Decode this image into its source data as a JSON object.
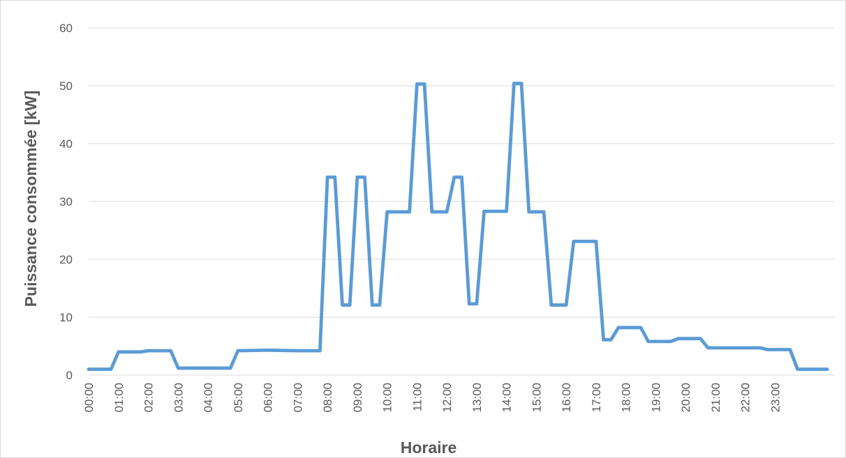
{
  "chart_data": {
    "type": "line",
    "title": "",
    "xlabel": "Horaire",
    "ylabel": "Puissance consommée [kW]",
    "ylim": [
      0,
      60
    ],
    "y_ticks": [
      0,
      10,
      20,
      30,
      40,
      50,
      60
    ],
    "y_tick_labels": [
      "0",
      "10",
      "20",
      "30",
      "40",
      "50",
      "60"
    ],
    "x_tick_labels": [
      "00:00",
      "01:00",
      "02:00",
      "03:00",
      "04:00",
      "05:00",
      "06:00",
      "07:00",
      "08:00",
      "09:00",
      "10:00",
      "11:00",
      "12:00",
      "13:00",
      "14:00",
      "15:00",
      "16:00",
      "17:00",
      "18:00",
      "19:00",
      "20:00",
      "21:00",
      "22:00",
      "23:00"
    ],
    "x_units": "quarter-hour",
    "grid": "horizontal",
    "legend": "none",
    "series": [
      {
        "color": "#5b9bd5",
        "points": [
          [
            0,
            1
          ],
          [
            0.75,
            1
          ],
          [
            1,
            4
          ],
          [
            1.75,
            4
          ],
          [
            2,
            4.2
          ],
          [
            2.75,
            4.2
          ],
          [
            3,
            1.2
          ],
          [
            4.75,
            1.2
          ],
          [
            5,
            4.2
          ],
          [
            6,
            4.3
          ],
          [
            7,
            4.2
          ],
          [
            7.75,
            4.2
          ],
          [
            8,
            34.2
          ],
          [
            8.25,
            34.2
          ],
          [
            8.5,
            12.1
          ],
          [
            8.75,
            12.1
          ],
          [
            9,
            34.2
          ],
          [
            9.25,
            34.2
          ],
          [
            9.5,
            12.1
          ],
          [
            9.75,
            12.1
          ],
          [
            10,
            28.2
          ],
          [
            10.75,
            28.2
          ],
          [
            11,
            50.3
          ],
          [
            11.25,
            50.3
          ],
          [
            11.5,
            28.2
          ],
          [
            12,
            28.2
          ],
          [
            12.25,
            34.2
          ],
          [
            12.5,
            34.2
          ],
          [
            12.75,
            12.3
          ],
          [
            13,
            12.3
          ],
          [
            13.25,
            28.3
          ],
          [
            14,
            28.3
          ],
          [
            14.25,
            50.4
          ],
          [
            14.5,
            50.4
          ],
          [
            14.75,
            28.2
          ],
          [
            15.25,
            28.2
          ],
          [
            15.5,
            12.1
          ],
          [
            16,
            12.1
          ],
          [
            16.25,
            23.1
          ],
          [
            17,
            23.1
          ],
          [
            17.25,
            6.1
          ],
          [
            17.5,
            6.1
          ],
          [
            17.75,
            8.2
          ],
          [
            18.5,
            8.2
          ],
          [
            18.75,
            5.8
          ],
          [
            19.5,
            5.8
          ],
          [
            19.75,
            6.3
          ],
          [
            20.5,
            6.3
          ],
          [
            20.75,
            4.7
          ],
          [
            22.5,
            4.7
          ],
          [
            22.75,
            4.4
          ],
          [
            23.5,
            4.4
          ],
          [
            23.75,
            1
          ],
          [
            24.75,
            1
          ]
        ]
      }
    ]
  }
}
